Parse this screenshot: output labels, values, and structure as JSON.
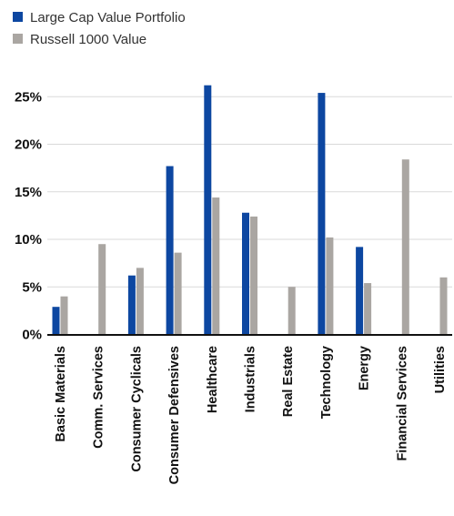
{
  "chart_data": {
    "type": "bar",
    "title": "",
    "xlabel": "",
    "ylabel": "",
    "ylim": [
      0,
      27
    ],
    "yticks": [
      "0%",
      "5%",
      "10%",
      "15%",
      "20%",
      "25%"
    ],
    "ytick_values": [
      0,
      5,
      10,
      15,
      20,
      25
    ],
    "grid": true,
    "legend_position": "top-left",
    "categories": [
      "Basic Materials",
      "Comm. Services",
      "Consumer Cyclicals",
      "Consumer Defensives",
      "Healthcare",
      "Industrials",
      "Real Estate",
      "Technology",
      "Energy",
      "Financial Services",
      "Utilities"
    ],
    "series": [
      {
        "name": "Large Cap Value Portfolio",
        "color": "#0d47a1",
        "values": [
          2.9,
          0,
          6.2,
          17.7,
          26.2,
          12.8,
          0,
          25.4,
          9.2,
          0,
          0
        ]
      },
      {
        "name": "Russell 1000 Value",
        "color": "#aaa6a2",
        "values": [
          4.0,
          9.5,
          7.0,
          8.6,
          14.4,
          12.4,
          5.0,
          10.2,
          5.4,
          18.4,
          6.0
        ]
      }
    ]
  }
}
